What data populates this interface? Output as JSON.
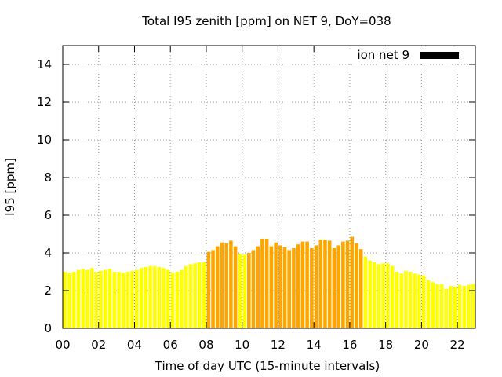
{
  "chart_data": {
    "type": "bar",
    "title": "Total I95 zenith [ppm] on NET 9, DoY=038",
    "xlabel": "Time of day UTC (15-minute intervals)",
    "ylabel": "I95 [ppm]",
    "xlim": [
      0,
      23
    ],
    "ylim": [
      0,
      15
    ],
    "x_ticks": [
      0,
      2,
      4,
      6,
      8,
      10,
      12,
      14,
      16,
      18,
      20,
      22
    ],
    "x_tick_labels": [
      "00",
      "02",
      "04",
      "06",
      "08",
      "10",
      "12",
      "14",
      "16",
      "18",
      "20",
      "22"
    ],
    "y_ticks": [
      0,
      2,
      4,
      6,
      8,
      10,
      12,
      14
    ],
    "y_tick_labels": [
      "0",
      "2",
      "4",
      "6",
      "8",
      "10",
      "12",
      "14"
    ],
    "grid": true,
    "legend": {
      "position": "top-right",
      "entries": [
        {
          "name": "ion net 9",
          "color": "#000000"
        }
      ]
    },
    "colors": {
      "low": "#ffff00",
      "high": "#ffa500"
    },
    "threshold": 4,
    "interval_hours": 0.25,
    "values": [
      3.0,
      2.95,
      3.0,
      3.1,
      3.15,
      3.1,
      3.2,
      3.0,
      3.05,
      3.1,
      3.15,
      3.0,
      3.0,
      2.95,
      3.0,
      3.05,
      3.1,
      3.2,
      3.25,
      3.3,
      3.3,
      3.25,
      3.2,
      3.1,
      2.95,
      3.0,
      3.1,
      3.3,
      3.4,
      3.45,
      3.5,
      3.5,
      4.05,
      4.15,
      4.35,
      4.55,
      4.5,
      4.65,
      4.35,
      3.95,
      3.9,
      4.0,
      4.15,
      4.35,
      4.75,
      4.75,
      4.35,
      4.55,
      4.4,
      4.3,
      4.15,
      4.25,
      4.45,
      4.6,
      4.6,
      4.25,
      4.4,
      4.7,
      4.7,
      4.65,
      4.25,
      4.4,
      4.6,
      4.65,
      4.85,
      4.5,
      4.2,
      3.8,
      3.6,
      3.5,
      3.4,
      3.45,
      3.45,
      3.3,
      3.0,
      2.9,
      3.05,
      3.0,
      2.9,
      2.85,
      2.8,
      2.55,
      2.45,
      2.35,
      2.35,
      2.1,
      2.25,
      2.2,
      2.3,
      2.25,
      2.3,
      2.35
    ]
  }
}
